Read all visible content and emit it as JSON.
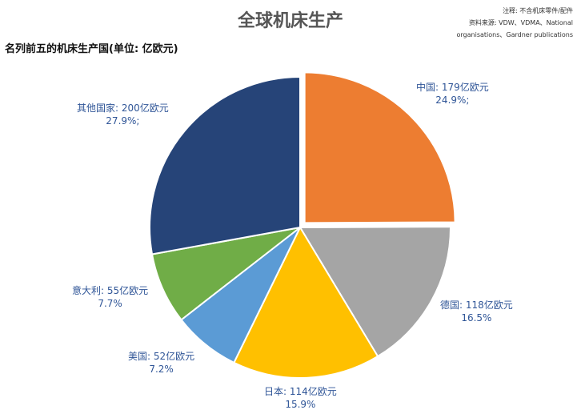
{
  "header": {
    "title": "全球机床生产",
    "subtitle": "名列前五的机床生产国(单位: 亿欧元)",
    "note_line1": "注释: 不含机床零件/配件",
    "note_line2": "资料来源: VDW、VDMA、National",
    "note_line3": "organisations、Gardner publications"
  },
  "chart_data": {
    "type": "pie",
    "unit": "亿欧元",
    "slices": [
      {
        "name": "中国",
        "value": 179,
        "percent_label": "24.9%;",
        "value_label": "179亿欧元",
        "color": "#ed7d31",
        "exploded": true
      },
      {
        "name": "德国",
        "value": 118,
        "percent_label": "16.5%",
        "value_label": "118亿欧元",
        "color": "#a5a5a5"
      },
      {
        "name": "日本",
        "value": 114,
        "percent_label": "15.9%",
        "value_label": "114亿欧元",
        "color": "#ffc000"
      },
      {
        "name": "美国",
        "value": 52,
        "percent_label": "7.2%",
        "value_label": "52亿欧元",
        "color": "#5b9bd5"
      },
      {
        "name": "意大利",
        "value": 55,
        "percent_label": "7.7%",
        "value_label": "55亿欧元",
        "color": "#70ad47"
      },
      {
        "name": "其他国家",
        "value": 200,
        "percent_label": "27.9%;",
        "value_label": "200亿欧元",
        "color": "#264478"
      }
    ]
  }
}
